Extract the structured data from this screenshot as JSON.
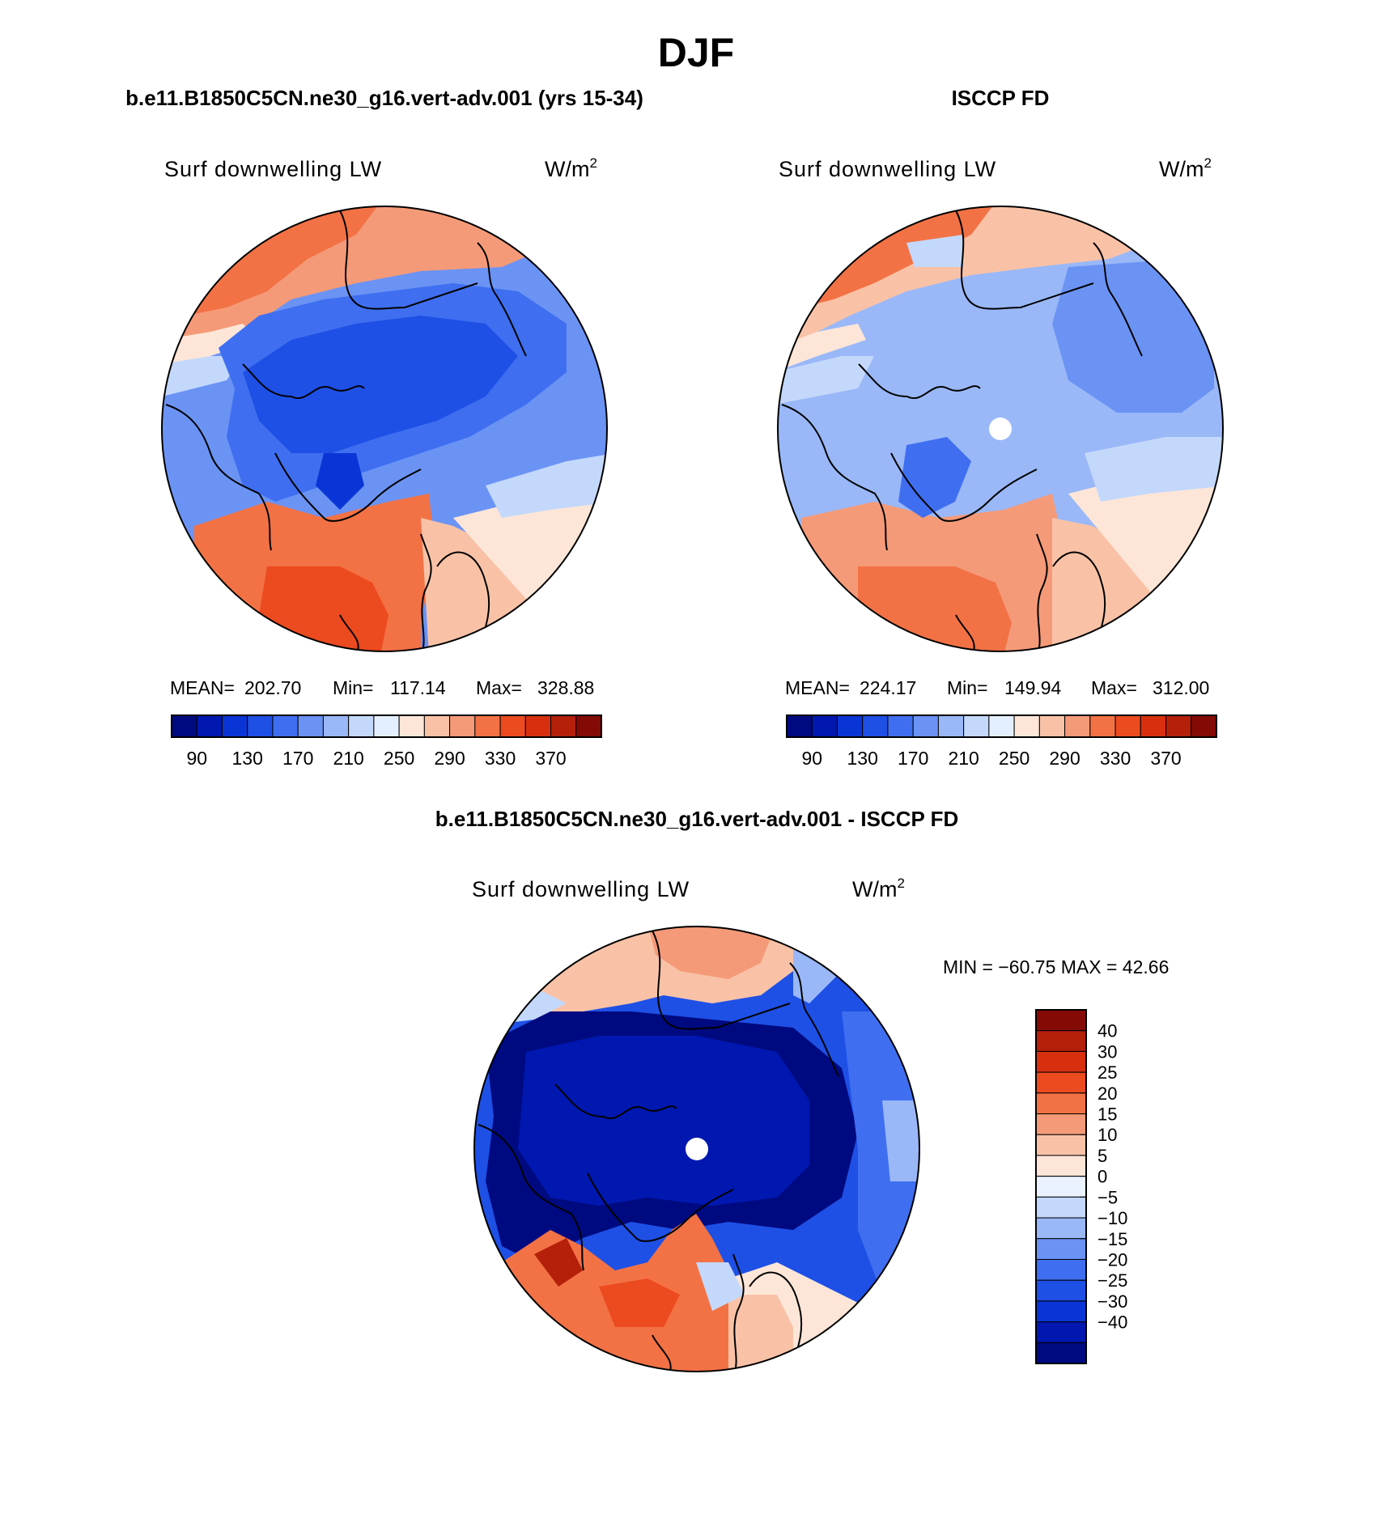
{
  "season_title": "DJF",
  "units": "W/m",
  "units_sup": "2",
  "variable": "Surf downwelling LW",
  "colors": {
    "ocean_blue": "#3a6fe0",
    "coast": "#000000"
  },
  "panels": [
    {
      "id": "model",
      "header": "b.e11.B1850C5CN.ne30_g16.vert-adv.001 (yrs 15-34)",
      "stats": {
        "mean_label": "MEAN=",
        "mean": "202.70",
        "min_label": "Min=",
        "min": "117.14",
        "max_label": "Max=",
        "max": "328.88"
      }
    },
    {
      "id": "obs",
      "header": "ISCCP FD",
      "stats": {
        "mean_label": "MEAN=",
        "mean": "224.17",
        "min_label": "Min=",
        "min": "149.94",
        "max_label": "Max=",
        "max": "312.00"
      }
    }
  ],
  "diff_panel": {
    "header": "b.e11.B1850C5CN.ne30_g16.vert-adv.001 - ISCCP FD",
    "minmax": "MIN = −60.75 MAX =   42.66"
  },
  "abs_colorbar": {
    "colors": [
      "#000a80",
      "#0018b0",
      "#0a35d6",
      "#1e50e6",
      "#3f6ff0",
      "#6b93f4",
      "#9ab8f8",
      "#c4d8fb",
      "#e3efff",
      "#fde6d8",
      "#f9c2a7",
      "#f59a78",
      "#f27245",
      "#ec4a1f",
      "#d8300f",
      "#b4200a",
      "#840a05"
    ],
    "tick_labels": [
      "90",
      "130",
      "170",
      "210",
      "250",
      "290",
      "330",
      "370"
    ]
  },
  "diff_colorbar": {
    "colors": [
      "#000a80",
      "#0018b0",
      "#0a35d6",
      "#1e50e6",
      "#3f6ff0",
      "#6b93f4",
      "#9ab8f8",
      "#c4d8fb",
      "#eaf2ff",
      "#fde6d8",
      "#f9c2a7",
      "#f59a78",
      "#f27245",
      "#ec4a1f",
      "#d8300f",
      "#b4200a",
      "#840a05"
    ],
    "tick_labels": [
      "−40",
      "−30",
      "−25",
      "−20",
      "−15",
      "−10",
      "−5",
      "0",
      "5",
      "10",
      "15",
      "20",
      "25",
      "30",
      "40"
    ]
  }
}
